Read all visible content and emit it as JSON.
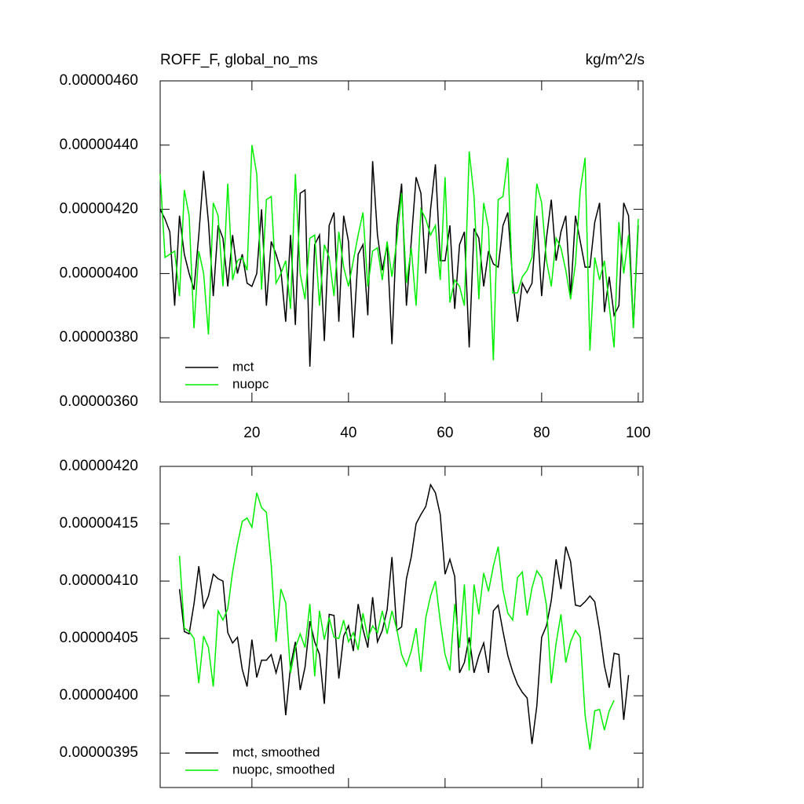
{
  "chart_data": [
    {
      "type": "line",
      "title": "ROFF_F, global_no_ms",
      "units": "kg/m^2/s",
      "x": [
        1,
        2,
        3,
        4,
        5,
        6,
        7,
        8,
        9,
        10,
        11,
        12,
        13,
        14,
        15,
        16,
        17,
        18,
        19,
        20,
        21,
        22,
        23,
        24,
        25,
        26,
        27,
        28,
        29,
        30,
        31,
        32,
        33,
        34,
        35,
        36,
        37,
        38,
        39,
        40,
        41,
        42,
        43,
        44,
        45,
        46,
        47,
        48,
        49,
        50,
        51,
        52,
        53,
        54,
        55,
        56,
        57,
        58,
        59,
        60,
        61,
        62,
        63,
        64,
        65,
        66,
        67,
        68,
        69,
        70,
        71,
        72,
        73,
        74,
        75,
        76,
        77,
        78,
        79,
        80,
        81,
        82,
        83,
        84,
        85,
        86,
        87,
        88,
        89,
        90,
        91,
        92,
        93,
        94,
        95,
        96,
        97,
        98,
        99,
        100
      ],
      "series": [
        {
          "name": "mct",
          "color": "#000000",
          "values": [
            4.2e-06,
            4.17e-06,
            4.13e-06,
            3.9e-06,
            4.18e-06,
            4.06e-06,
            4e-06,
            3.95e-06,
            4.12e-06,
            4.32e-06,
            4.16e-06,
            3.93e-06,
            4.15e-06,
            4.11e-06,
            3.96e-06,
            4.12e-06,
            4e-06,
            4.06e-06,
            3.97e-06,
            3.96e-06,
            4e-06,
            4.2e-06,
            3.9e-06,
            4.1e-06,
            4.06e-06,
            4.01e-06,
            3.85e-06,
            4.12e-06,
            3.84e-06,
            4.25e-06,
            4.26e-06,
            3.71e-06,
            4.09e-06,
            4.12e-06,
            3.79e-06,
            4.15e-06,
            4.19e-06,
            3.85e-06,
            4.18e-06,
            4.1e-06,
            3.8e-06,
            4.06e-06,
            4.09e-06,
            3.87e-06,
            4.35e-06,
            4.12e-06,
            4.01e-06,
            4.09e-06,
            3.78e-06,
            4.15e-06,
            4.28e-06,
            3.9e-06,
            4.1e-06,
            4.3e-06,
            4.25e-06,
            4e-06,
            4.2e-06,
            4.34e-06,
            4.04e-06,
            4.04e-06,
            4.15e-06,
            3.89e-06,
            4.09e-06,
            4.13e-06,
            3.77e-06,
            4.14e-06,
            4.11e-06,
            3.96e-06,
            4.07e-06,
            4.03e-06,
            4.02e-06,
            4.15e-06,
            4.19e-06,
            3.98e-06,
            3.85e-06,
            3.97e-06,
            3.94e-06,
            3.97e-06,
            4.18e-06,
            3.93e-06,
            4.11e-06,
            4.23e-06,
            4.04e-06,
            4.13e-06,
            4.18e-06,
            3.93e-06,
            4.18e-06,
            4.1e-06,
            4.02e-06,
            4.02e-06,
            4.16e-06,
            4.22e-06,
            3.88e-06,
            3.99e-06,
            3.87e-06,
            3.9e-06,
            4.22e-06,
            4.18e-06,
            3.83e-06,
            4.15e-06
          ]
        },
        {
          "name": "nuopc",
          "color": "#00ee00",
          "values": [
            4.31e-06,
            4.05e-06,
            4.06e-06,
            4.07e-06,
            3.93e-06,
            4.26e-06,
            4.18e-06,
            3.83e-06,
            4.07e-06,
            4e-06,
            3.81e-06,
            4.22e-06,
            4.18e-06,
            3.96e-06,
            4.28e-06,
            3.98e-06,
            4.04e-06,
            4.05e-06,
            4.01e-06,
            4.4e-06,
            4.31e-06,
            3.95e-06,
            4.23e-06,
            4.24e-06,
            3.97e-06,
            4e-06,
            4.04e-06,
            3.89e-06,
            4.31e-06,
            4e-06,
            3.92e-06,
            4.11e-06,
            4.12e-06,
            3.9e-06,
            4.09e-06,
            4.05e-06,
            3.93e-06,
            4.13e-06,
            4.02e-06,
            3.96e-06,
            4.04e-06,
            4.12e-06,
            4.19e-06,
            3.96e-06,
            4.07e-06,
            4.08e-06,
            3.98e-06,
            4.1e-06,
            3.99e-06,
            4.1e-06,
            4.25e-06,
            3.97e-06,
            4.08e-06,
            3.9e-06,
            4.2e-06,
            4.17e-06,
            4.12e-06,
            4.15e-06,
            3.98e-06,
            4.3e-06,
            3.91e-06,
            3.98e-06,
            3.96e-06,
            3.9e-06,
            4.38e-06,
            4.24e-06,
            3.92e-06,
            4.22e-06,
            4.14e-06,
            3.73e-06,
            4.23e-06,
            4.24e-06,
            4.36e-06,
            3.94e-06,
            3.94e-06,
            3.99e-06,
            4.01e-06,
            4.05e-06,
            4.28e-06,
            4.22e-06,
            4.04e-06,
            3.96e-06,
            4.11e-06,
            4.08e-06,
            4.01e-06,
            3.92e-06,
            4.03e-06,
            4.26e-06,
            4.36e-06,
            3.76e-06,
            4.05e-06,
            3.98e-06,
            4.04e-06,
            3.9e-06,
            3.77e-06,
            4.16e-06,
            4e-06,
            4.12e-06,
            3.83e-06,
            4.17e-06
          ]
        }
      ],
      "xlim": [
        1,
        101
      ],
      "xticks": [
        20,
        40,
        60,
        80,
        100
      ],
      "ylim": [
        3.6e-06,
        4.6e-06
      ],
      "yticks": [
        {
          "value": 3.6e-06,
          "label": "0.00000360"
        },
        {
          "value": 3.8e-06,
          "label": "0.00000380"
        },
        {
          "value": 4e-06,
          "label": "0.00000400"
        },
        {
          "value": 4.2e-06,
          "label": "0.00000420"
        },
        {
          "value": 4.4e-06,
          "label": "0.00000440"
        },
        {
          "value": 4.6e-06,
          "label": "0.00000460"
        }
      ],
      "legend": "bottom-left"
    },
    {
      "type": "line",
      "x": [
        5,
        6,
        7,
        8,
        9,
        10,
        11,
        12,
        13,
        14,
        15,
        16,
        17,
        18,
        19,
        20,
        21,
        22,
        23,
        24,
        25,
        26,
        27,
        28,
        29,
        30,
        31,
        32,
        33,
        34,
        35,
        36,
        37,
        38,
        39,
        40,
        41,
        42,
        43,
        44,
        45,
        46,
        47,
        48,
        49,
        50,
        51,
        52,
        53,
        54,
        55,
        56,
        57,
        58,
        59,
        60,
        61,
        62,
        63,
        64,
        65,
        66,
        67,
        68,
        69,
        70,
        71,
        72,
        73,
        74,
        75,
        76,
        77,
        78,
        79,
        80,
        81,
        82,
        83,
        84,
        85,
        86,
        87,
        88,
        89,
        90,
        91,
        92,
        93,
        94,
        95,
        96,
        97,
        98
      ],
      "series": [
        {
          "name": "mct, smoothed",
          "color": "#000000",
          "values": [
            4.093e-06,
            4.056e-06,
            4.054e-06,
            4.08e-06,
            4.113e-06,
            4.077e-06,
            4.087e-06,
            4.106e-06,
            4.102e-06,
            4.1e-06,
            4.055e-06,
            4.046e-06,
            4.051e-06,
            4.023e-06,
            4.008e-06,
            4.049e-06,
            4.016e-06,
            4.031e-06,
            4.031e-06,
            4.036e-06,
            4.02e-06,
            4.036e-06,
            3.983e-06,
            4.026e-06,
            4.047e-06,
            4.005e-06,
            4.025e-06,
            4.065e-06,
            4.047e-06,
            4.036e-06,
            3.993e-06,
            4.071e-06,
            4.07e-06,
            4.015e-06,
            4.052e-06,
            4.061e-06,
            4.039e-06,
            4.08e-06,
            4.058e-06,
            4.042e-06,
            4.086e-06,
            4.047e-06,
            4.057e-06,
            4.075e-06,
            4.121e-06,
            4.057e-06,
            4.06e-06,
            4.102e-06,
            4.121e-06,
            4.15e-06,
            4.158e-06,
            4.165e-06,
            4.184e-06,
            4.177e-06,
            4.158e-06,
            4.106e-06,
            4.119e-06,
            4.104e-06,
            4.02e-06,
            4.029e-06,
            4.051e-06,
            4.02e-06,
            4.035e-06,
            4.046e-06,
            4.02e-06,
            4.074e-06,
            4.079e-06,
            4.056e-06,
            4.035e-06,
            4.021e-06,
            4.01e-06,
            4.003e-06,
            3.998e-06,
            3.958e-06,
            3.991e-06,
            4.051e-06,
            4.061e-06,
            4.083e-06,
            4.119e-06,
            4.093e-06,
            4.13e-06,
            4.117e-06,
            4.079e-06,
            4.078e-06,
            4.082e-06,
            4.087e-06,
            4.082e-06,
            4.057e-06,
            4.026e-06,
            4.007e-06,
            4.037e-06,
            4.036e-06,
            3.979e-06,
            4.018e-06
          ]
        },
        {
          "name": "nuopc, smoothed",
          "color": "#00ee00",
          "values": [
            4.122e-06,
            4.059e-06,
            4.056e-06,
            4.05e-06,
            4.011e-06,
            4.052e-06,
            4.042e-06,
            4.008e-06,
            4.074e-06,
            4.066e-06,
            4.076e-06,
            4.108e-06,
            4.132e-06,
            4.152e-06,
            4.155e-06,
            4.147e-06,
            4.177e-06,
            4.164e-06,
            4.16e-06,
            4.114e-06,
            4.047e-06,
            4.093e-06,
            4.081e-06,
            4.02e-06,
            4.042e-06,
            4.054e-06,
            4.042e-06,
            4.08e-06,
            4.017e-06,
            4.074e-06,
            4.049e-06,
            4.068e-06,
            4.051e-06,
            4.05e-06,
            4.066e-06,
            4.047e-06,
            4.055e-06,
            4.04e-06,
            4.072e-06,
            4.05e-06,
            4.061e-06,
            4.055e-06,
            4.074e-06,
            4.054e-06,
            4.074e-06,
            4.058e-06,
            4.036e-06,
            4.026e-06,
            4.039e-06,
            4.059e-06,
            4.021e-06,
            4.068e-06,
            4.087e-06,
            4.1e-06,
            4.065e-06,
            4.036e-06,
            4.022e-06,
            4.08e-06,
            4.042e-06,
            4.097e-06,
            4.022e-06,
            4.097e-06,
            4.071e-06,
            4.107e-06,
            4.091e-06,
            4.113e-06,
            4.13e-06,
            4.092e-06,
            4.072e-06,
            4.066e-06,
            4.103e-06,
            4.108e-06,
            4.07e-06,
            4.094e-06,
            4.109e-06,
            4.103e-06,
            4.079e-06,
            4.011e-06,
            4.046e-06,
            4.071e-06,
            4.029e-06,
            4.047e-06,
            4.057e-06,
            4.051e-06,
            3.983e-06,
            3.953e-06,
            3.987e-06,
            3.988e-06,
            3.97e-06,
            3.987e-06,
            3.996e-06,
            null,
            null,
            null
          ]
        }
      ],
      "xlim": [
        1,
        101
      ],
      "ylim": [
        3.92e-06,
        4.2e-06
      ],
      "yticks": [
        {
          "value": 3.95e-06,
          "label": "0.00000395"
        },
        {
          "value": 4e-06,
          "label": "0.00000400"
        },
        {
          "value": 4.05e-06,
          "label": "0.00000405"
        },
        {
          "value": 4.1e-06,
          "label": "0.00000410"
        },
        {
          "value": 4.15e-06,
          "label": "0.00000415"
        },
        {
          "value": 4.2e-06,
          "label": "0.00000420"
        }
      ],
      "legend": "bottom-left"
    }
  ]
}
